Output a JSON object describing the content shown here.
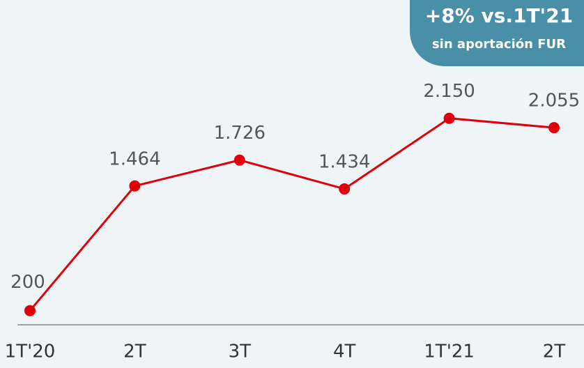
{
  "chart_data": {
    "type": "line",
    "categories": [
      "1T'20",
      "2T",
      "3T",
      "4T",
      "1T'21",
      "2T"
    ],
    "series": [
      {
        "name": null,
        "color": "#e0000b",
        "values": [
          200,
          1464,
          1726,
          1434,
          2150,
          2055
        ],
        "value_labels": [
          "200",
          "1.464",
          "1.726",
          "1.434",
          "2.150",
          "2.055"
        ]
      }
    ],
    "ylim": [
      0,
      2300
    ],
    "annotation": {
      "headline": "+8% vs.1T'21",
      "subtext": "sin aportación FUR"
    }
  }
}
